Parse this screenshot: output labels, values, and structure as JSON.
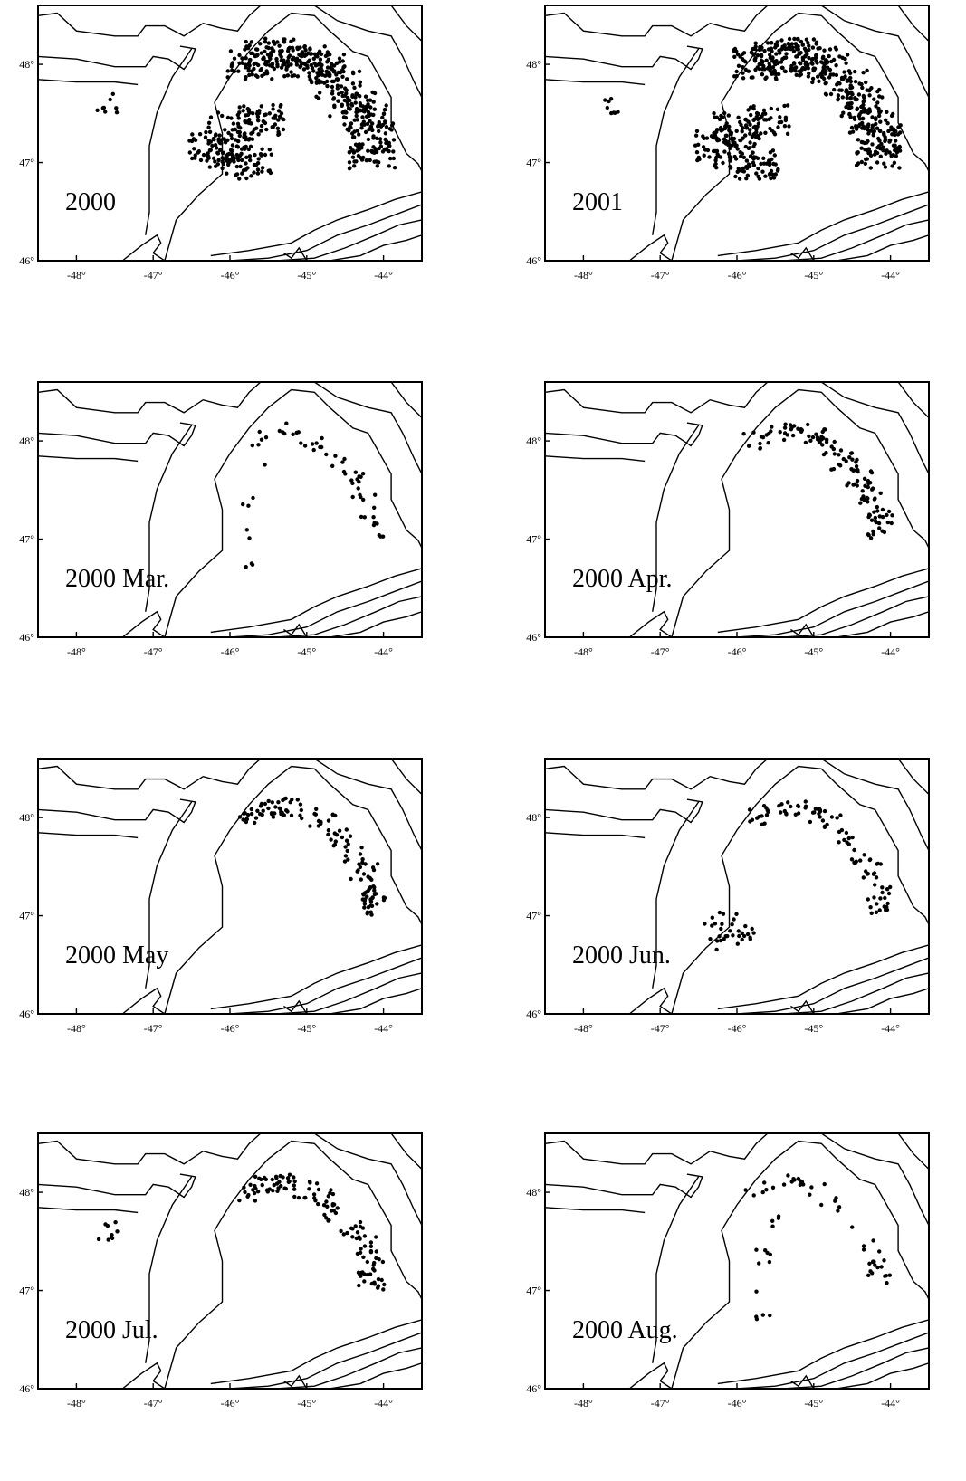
{
  "figure": {
    "panels": [
      {
        "label": "2000",
        "spread": "full"
      },
      {
        "label": "2001",
        "spread": "full"
      },
      {
        "label": "2000 Mar.",
        "spread": "sparse"
      },
      {
        "label": "2000 Apr.",
        "spread": "arc"
      },
      {
        "label": "2000 May",
        "spread": "arc"
      },
      {
        "label": "2000 Jun.",
        "spread": "arc-west"
      },
      {
        "label": "2000 Jul.",
        "spread": "arc"
      },
      {
        "label": "2000 Aug.",
        "spread": "sparse"
      }
    ],
    "x_ticks": [
      "-48°",
      "-47°",
      "-46°",
      "-45°",
      "-44°"
    ],
    "x_tick_values": [
      -48,
      -47,
      -46,
      -45,
      -44
    ],
    "y_ticks": [
      "46°",
      "47°",
      "48°"
    ],
    "y_tick_values": [
      46,
      47,
      48
    ],
    "lon_range": [
      -48.5,
      -43.5
    ],
    "lat_range": [
      46.0,
      48.6
    ],
    "colors": {
      "ink": "#000000",
      "background": "#ffffff"
    }
  },
  "chart_data": {
    "type": "scatter",
    "xlabel": "",
    "ylabel": "",
    "xlim": [
      -48.5,
      -43.5
    ],
    "ylim": [
      46.0,
      48.6
    ],
    "grid": false
  }
}
